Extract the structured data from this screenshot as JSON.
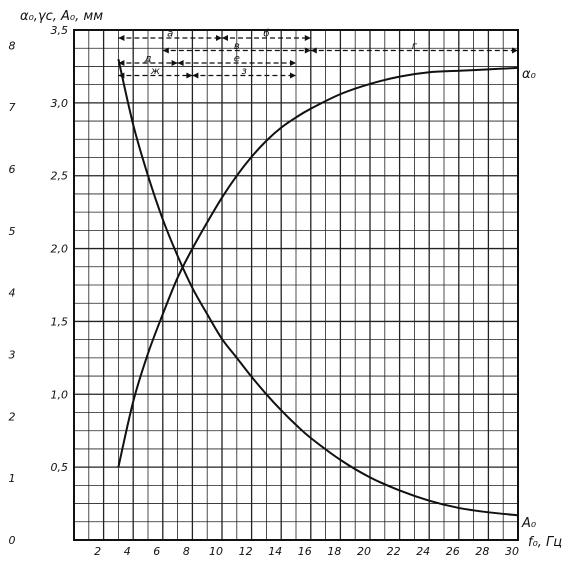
{
  "chart_data": {
    "type": "line",
    "ylabel": "α₀,γc, A₀, мм",
    "xlabel": "f₀, Гц",
    "x_ticks": [
      "2",
      "4",
      "6",
      "8",
      "10",
      "12",
      "14",
      "16",
      "18",
      "20",
      "22",
      "24",
      "26",
      "28",
      "30"
    ],
    "y_inner_ticks": [
      "0,5",
      "1,0",
      "1,5",
      "2,0",
      "2,5",
      "3,0",
      "3,5"
    ],
    "y_outer_ticks": [
      "0",
      "1",
      "2",
      "3",
      "4",
      "5",
      "6",
      "7",
      "8"
    ],
    "xlim": [
      0,
      30
    ],
    "ylim": [
      0,
      3.5
    ],
    "y_outer_lim": [
      0,
      8
    ],
    "grid": true,
    "series": [
      {
        "name": "α₀",
        "color": "#111111",
        "x": [
          3,
          4,
          5,
          6,
          7,
          8,
          9,
          10,
          11,
          12,
          13,
          14,
          15,
          16,
          18,
          20,
          22,
          24,
          26,
          28,
          30
        ],
        "y": [
          0.5,
          0.95,
          1.28,
          1.55,
          1.8,
          2.0,
          2.18,
          2.35,
          2.5,
          2.63,
          2.74,
          2.83,
          2.9,
          2.96,
          3.06,
          3.13,
          3.18,
          3.21,
          3.22,
          3.23,
          3.24
        ]
      },
      {
        "name": "A₀",
        "color": "#111111",
        "x": [
          3,
          4,
          5,
          6,
          7,
          8,
          9,
          10,
          11,
          12,
          13,
          14,
          15,
          16,
          18,
          20,
          22,
          24,
          26,
          28,
          30
        ],
        "y": [
          3.3,
          2.85,
          2.5,
          2.2,
          1.95,
          1.73,
          1.55,
          1.38,
          1.25,
          1.12,
          1.0,
          0.89,
          0.79,
          0.7,
          0.55,
          0.43,
          0.34,
          0.27,
          0.22,
          0.19,
          0.17
        ]
      }
    ],
    "bands": [
      {
        "label": "a",
        "row": 1,
        "x_start": 3,
        "x_end": 10
      },
      {
        "label": "б",
        "row": 1,
        "x_start": 10,
        "x_end": 16
      },
      {
        "label": "в",
        "row": 2,
        "x_start": 6,
        "x_end": 16
      },
      {
        "label": "г",
        "row": 2,
        "x_start": 16,
        "x_end": 30
      },
      {
        "label": "д",
        "row": 3,
        "x_start": 3,
        "x_end": 7
      },
      {
        "label": "е",
        "row": 3,
        "x_start": 7,
        "x_end": 15
      },
      {
        "label": "ж",
        "row": 4,
        "x_start": 3,
        "x_end": 8
      },
      {
        "label": "з",
        "row": 4,
        "x_start": 8,
        "x_end": 15
      }
    ]
  }
}
